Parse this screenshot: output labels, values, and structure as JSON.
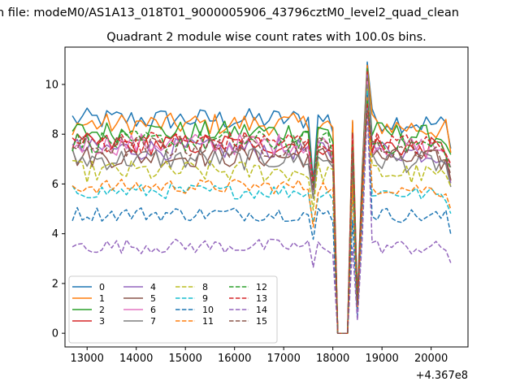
{
  "window": {
    "suptitle": "n file: modeM0/AS1A13_018T01_9000005906_43796cztM0_level2_quad_clean"
  },
  "chart_data": {
    "type": "line",
    "title": "Quadrant 2 module wise count rates with 100.0s bins.",
    "xlabel": "",
    "ylabel": "",
    "x_offset_label": "+4.367e8",
    "xlim": [
      12550,
      20750
    ],
    "ylim": [
      -0.55,
      11.5
    ],
    "x_ticks": [
      13000,
      14000,
      15000,
      16000,
      17000,
      18000,
      19000,
      20000
    ],
    "x_tick_labels": [
      "13000",
      "14000",
      "15000",
      "16000",
      "17000",
      "18000",
      "19000",
      "20000"
    ],
    "y_ticks": [
      0,
      2,
      4,
      6,
      8,
      10
    ],
    "y_tick_labels": [
      "0",
      "2",
      "4",
      "6",
      "8",
      "10"
    ],
    "grid": false,
    "legend_placement": "lower-left",
    "legend_columns": 4,
    "x_start": 12700,
    "x_step": 100,
    "n_points": 78,
    "profile": [
      0.0,
      0.0,
      0.0,
      0.0,
      0.0,
      0.0,
      0.0,
      0.0,
      0.0,
      0.0,
      0.0,
      0.0,
      0.0,
      0.0,
      0.0,
      0.0,
      0.0,
      0.0,
      0.0,
      0.0,
      0.0,
      0.0,
      0.0,
      0.0,
      0.0,
      0.0,
      0.0,
      0.0,
      0.0,
      0.0,
      0.0,
      0.0,
      0.0,
      0.0,
      0.0,
      0.0,
      0.0,
      0.0,
      0.0,
      0.0,
      0.0,
      0.0,
      0.0,
      0.0,
      0.0,
      0.0,
      0.0,
      0.0,
      0.0,
      -1.7,
      0.0,
      0.0,
      0.0,
      -0.25,
      "gap",
      "gap",
      "gap",
      0.0,
      0.18,
      0.12,
      0.07,
      0.03,
      0.0,
      0.0,
      0.0,
      0.0,
      0.0,
      0.0,
      0.0,
      0.0,
      0.0,
      0.0,
      0.0,
      0.0,
      0.0,
      0.0,
      0.0,
      -0.9
    ],
    "series": [
      {
        "name": "0",
        "color": "#1f77b4",
        "dash": "solid",
        "base": 8.6
      },
      {
        "name": "1",
        "color": "#ff7f0e",
        "dash": "solid",
        "base": 8.4
      },
      {
        "name": "2",
        "color": "#2ca02c",
        "dash": "solid",
        "base": 8.1
      },
      {
        "name": "3",
        "color": "#d62728",
        "dash": "solid",
        "base": 7.6
      },
      {
        "name": "4",
        "color": "#9467bd",
        "dash": "solid",
        "base": 7.4
      },
      {
        "name": "5",
        "color": "#8c564b",
        "dash": "solid",
        "base": 7.1
      },
      {
        "name": "6",
        "color": "#e377c2",
        "dash": "solid",
        "base": 7.6
      },
      {
        "name": "7",
        "color": "#7f7f7f",
        "dash": "solid",
        "base": 7.0
      },
      {
        "name": "8",
        "color": "#bcbd22",
        "dash": "dashed",
        "base": 6.5
      },
      {
        "name": "9",
        "color": "#17becf",
        "dash": "dashed",
        "base": 5.7
      },
      {
        "name": "10",
        "color": "#1f77b4",
        "dash": "dashed",
        "base": 4.8
      },
      {
        "name": "11",
        "color": "#ff7f0e",
        "dash": "dashed",
        "base": 5.9
      },
      {
        "name": "12",
        "color": "#2ca02c",
        "dash": "dashed",
        "base": 7.7
      },
      {
        "name": "13",
        "color": "#d62728",
        "dash": "dashed",
        "base": 7.7
      },
      {
        "name": "14",
        "color": "#9467bd",
        "dash": "dashed",
        "base": 3.5
      },
      {
        "name": "15",
        "color": "#8c564b",
        "dash": "dashed",
        "base": 7.5
      }
    ]
  }
}
